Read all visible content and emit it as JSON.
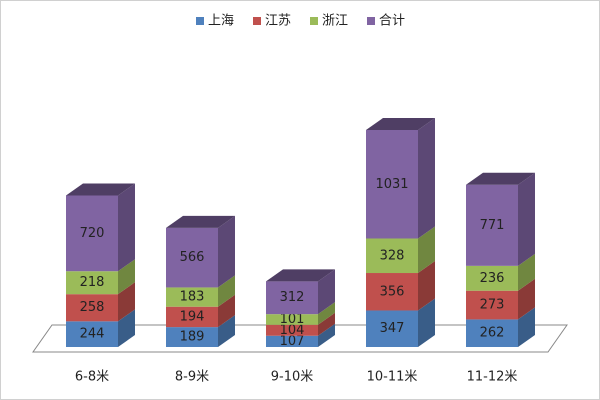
{
  "chart_data": {
    "type": "bar3d_stacked",
    "categories": [
      "6-8米",
      "8-9米",
      "9-10米",
      "10-11米",
      "11-12米"
    ],
    "series": [
      {
        "name": "上海",
        "color": "#4f81bd",
        "values": [
          244,
          189,
          107,
          347,
          262
        ]
      },
      {
        "name": "江苏",
        "color": "#c0504d",
        "values": [
          258,
          194,
          104,
          356,
          273
        ]
      },
      {
        "name": "浙江",
        "color": "#9bbb59",
        "values": [
          218,
          183,
          101,
          328,
          236
        ]
      },
      {
        "name": "合计",
        "color": "#8064a2",
        "values": [
          720,
          566,
          312,
          1031,
          771
        ]
      }
    ],
    "legend": "top"
  }
}
